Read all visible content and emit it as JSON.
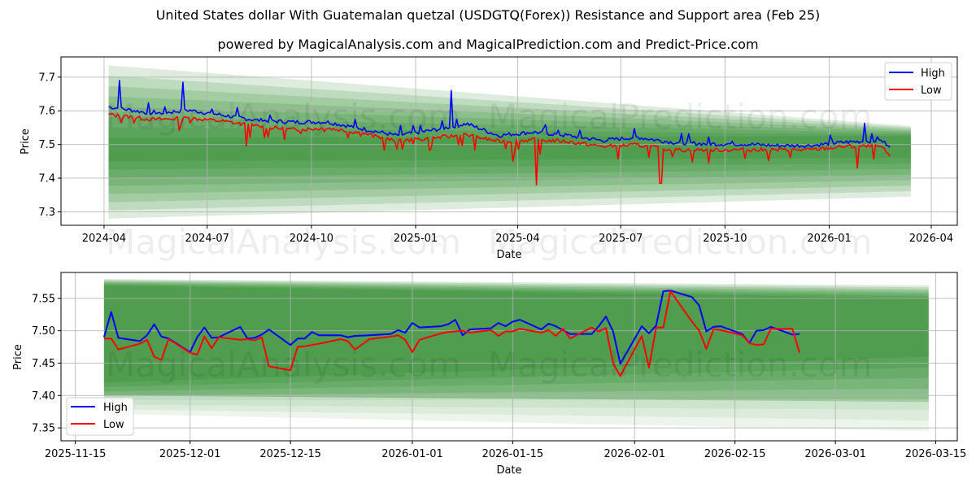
{
  "header": {
    "title": "United States dollar With Guatemalan quetzal (USDGTQ(Forex)) Resistance and Support area (Feb 25)",
    "subtitle": "powered by MagicalAnalysis.com and MagicalPrediction.com and Predict-Price.com"
  },
  "watermarks": [
    "MagicalAnalysis.com",
    "MagicalPrediction.com"
  ],
  "colors": {
    "high": "#0000ff",
    "low": "#ff0000",
    "band": "#2e8b2e",
    "grid": "#b0b0b0"
  },
  "chart_data": [
    {
      "type": "line",
      "title": "",
      "xlabel": "Date",
      "ylabel": "Price",
      "ylim": [
        7.26,
        7.76
      ],
      "xlim": [
        "2024-02-23",
        "2026-04-24"
      ],
      "grid": true,
      "legend_position": "upper right",
      "x_ticks": [
        "2024-04",
        "2024-07",
        "2024-10",
        "2025-01",
        "2025-04",
        "2025-07",
        "2025-10",
        "2026-01",
        "2026-04"
      ],
      "y_ticks": [
        "7.3",
        "7.4",
        "7.5",
        "7.6",
        "7.7"
      ],
      "legend": [
        "High",
        "Low"
      ],
      "band": {
        "x_start": "2024-04-05",
        "x_end": "2026-03-14",
        "outer_upper": [
          7.735,
          7.555
        ],
        "outer_lower": [
          7.28,
          7.345
        ],
        "core_upper": [
          7.52,
          7.525
        ],
        "core_lower": [
          7.45,
          7.46
        ]
      },
      "series": [
        {
          "name": "High",
          "approx_monthly": [
            {
              "x": "2024-04",
              "y": 7.61
            },
            {
              "x": "2024-05",
              "y": 7.59
            },
            {
              "x": "2024-06",
              "y": 7.6
            },
            {
              "x": "2024-07",
              "y": 7.585
            },
            {
              "x": "2024-08",
              "y": 7.57
            },
            {
              "x": "2024-09",
              "y": 7.565
            },
            {
              "x": "2024-10",
              "y": 7.565
            },
            {
              "x": "2024-11",
              "y": 7.545
            },
            {
              "x": "2024-12",
              "y": 7.525
            },
            {
              "x": "2025-01",
              "y": 7.54
            },
            {
              "x": "2025-02",
              "y": 7.56
            },
            {
              "x": "2025-03",
              "y": 7.525
            },
            {
              "x": "2025-04",
              "y": 7.535
            },
            {
              "x": "2025-05",
              "y": 7.525
            },
            {
              "x": "2025-06",
              "y": 7.51
            },
            {
              "x": "2025-07",
              "y": 7.52
            },
            {
              "x": "2025-08",
              "y": 7.505
            },
            {
              "x": "2025-09",
              "y": 7.5
            },
            {
              "x": "2025-10",
              "y": 7.5
            },
            {
              "x": "2025-11",
              "y": 7.495
            },
            {
              "x": "2025-12",
              "y": 7.495
            },
            {
              "x": "2026-01",
              "y": 7.505
            },
            {
              "x": "2026-02",
              "y": 7.51
            },
            {
              "x": "2026-02-24",
              "y": 7.495
            }
          ],
          "notable_peaks": [
            {
              "x": "2024-04-15",
              "y": 7.69
            },
            {
              "x": "2024-06-10",
              "y": 7.685
            },
            {
              "x": "2025-02-01",
              "y": 7.66
            },
            {
              "x": "2026-02-01",
              "y": 7.563
            }
          ]
        },
        {
          "name": "Low",
          "approx_monthly": [
            {
              "x": "2024-04",
              "y": 7.59
            },
            {
              "x": "2024-05",
              "y": 7.575
            },
            {
              "x": "2024-06",
              "y": 7.58
            },
            {
              "x": "2024-07",
              "y": 7.57
            },
            {
              "x": "2024-08",
              "y": 7.555
            },
            {
              "x": "2024-09",
              "y": 7.545
            },
            {
              "x": "2024-10",
              "y": 7.55
            },
            {
              "x": "2024-11",
              "y": 7.535
            },
            {
              "x": "2024-12",
              "y": 7.51
            },
            {
              "x": "2025-01",
              "y": 7.52
            },
            {
              "x": "2025-02",
              "y": 7.53
            },
            {
              "x": "2025-03",
              "y": 7.51
            },
            {
              "x": "2025-04",
              "y": 7.515
            },
            {
              "x": "2025-05",
              "y": 7.51
            },
            {
              "x": "2025-06",
              "y": 7.495
            },
            {
              "x": "2025-07",
              "y": 7.5
            },
            {
              "x": "2025-08",
              "y": 7.485
            },
            {
              "x": "2025-09",
              "y": 7.485
            },
            {
              "x": "2025-10",
              "y": 7.485
            },
            {
              "x": "2025-11",
              "y": 7.485
            },
            {
              "x": "2025-12",
              "y": 7.485
            },
            {
              "x": "2026-01",
              "y": 7.495
            },
            {
              "x": "2026-02",
              "y": 7.495
            },
            {
              "x": "2026-02-24",
              "y": 7.466
            }
          ],
          "notable_troughs": [
            {
              "x": "2024-08-05",
              "y": 7.495
            },
            {
              "x": "2025-03-28",
              "y": 7.45
            },
            {
              "x": "2025-04-18",
              "y": 7.38
            },
            {
              "x": "2025-08-05",
              "y": 7.385
            },
            {
              "x": "2026-01-26",
              "y": 7.43
            }
          ]
        }
      ]
    },
    {
      "type": "line",
      "title": "",
      "xlabel": "Date",
      "ylabel": "Price",
      "ylim": [
        7.33,
        7.59
      ],
      "xlim": [
        "2025-11-13",
        "2026-03-18"
      ],
      "grid": true,
      "legend_position": "lower left",
      "x_ticks": [
        "2025-11-15",
        "2025-12-01",
        "2025-12-15",
        "2026-01-01",
        "2026-01-15",
        "2026-02-01",
        "2026-02-15",
        "2026-03-01",
        "2026-03-15"
      ],
      "y_ticks": [
        "7.35",
        "7.40",
        "7.45",
        "7.50",
        "7.55"
      ],
      "legend": [
        "High",
        "Low"
      ],
      "band": {
        "x_start": "2025-11-19",
        "x_end": "2026-03-14",
        "outer_upper": [
          7.58,
          7.57
        ],
        "outer_lower": [
          7.372,
          7.345
        ],
        "mid_lower": [
          7.4,
          7.39
        ],
        "core_upper": [
          7.57,
          7.55
        ],
        "core_lower": [
          7.42,
          7.46
        ]
      },
      "x": [
        "2025-11-19",
        "2025-11-20",
        "2025-11-21",
        "2025-11-24",
        "2025-11-25",
        "2025-11-26",
        "2025-11-27",
        "2025-11-28",
        "2025-12-01",
        "2025-12-02",
        "2025-12-03",
        "2025-12-04",
        "2025-12-05",
        "2025-12-08",
        "2025-12-09",
        "2025-12-10",
        "2025-12-11",
        "2025-12-12",
        "2025-12-15",
        "2025-12-16",
        "2025-12-17",
        "2025-12-18",
        "2025-12-19",
        "2025-12-22",
        "2025-12-23",
        "2025-12-24",
        "2025-12-26",
        "2025-12-29",
        "2025-12-30",
        "2025-12-31",
        "2026-01-01",
        "2026-01-02",
        "2026-01-05",
        "2026-01-06",
        "2026-01-07",
        "2026-01-08",
        "2026-01-09",
        "2026-01-12",
        "2026-01-13",
        "2026-01-14",
        "2026-01-15",
        "2026-01-16",
        "2026-01-19",
        "2026-01-20",
        "2026-01-21",
        "2026-01-22",
        "2026-01-23",
        "2026-01-26",
        "2026-01-27",
        "2026-01-28",
        "2026-01-29",
        "2026-01-30",
        "2026-02-02",
        "2026-02-03",
        "2026-02-04",
        "2026-02-05",
        "2026-02-06",
        "2026-02-09",
        "2026-02-10",
        "2026-02-11",
        "2026-02-12",
        "2026-02-13",
        "2026-02-16",
        "2026-02-17",
        "2026-02-18",
        "2026-02-19",
        "2026-02-20",
        "2026-02-23",
        "2026-02-24"
      ],
      "series": [
        {
          "name": "High",
          "values": [
            7.49,
            7.529,
            7.489,
            7.484,
            7.493,
            7.51,
            7.491,
            7.488,
            7.467,
            7.49,
            7.505,
            7.489,
            7.49,
            7.506,
            7.488,
            7.489,
            7.494,
            7.502,
            7.478,
            7.488,
            7.488,
            7.498,
            7.493,
            7.493,
            7.49,
            7.492,
            7.493,
            7.495,
            7.501,
            7.497,
            7.512,
            7.505,
            7.507,
            7.51,
            7.517,
            7.493,
            7.502,
            7.504,
            7.512,
            7.507,
            7.514,
            7.517,
            7.502,
            7.511,
            7.507,
            7.501,
            7.495,
            7.495,
            7.507,
            7.522,
            7.499,
            7.449,
            7.507,
            7.496,
            7.508,
            7.561,
            7.562,
            7.552,
            7.539,
            7.499,
            7.506,
            7.507,
            7.495,
            7.481,
            7.5,
            7.501,
            7.506,
            7.494,
            7.495
          ]
        },
        {
          "name": "Low",
          "values": [
            7.488,
            7.488,
            7.471,
            7.48,
            7.486,
            7.46,
            7.455,
            7.487,
            7.466,
            7.463,
            7.491,
            7.473,
            7.49,
            7.486,
            7.487,
            7.485,
            7.49,
            7.445,
            7.439,
            7.475,
            7.476,
            7.478,
            7.48,
            7.487,
            7.484,
            7.471,
            7.487,
            7.491,
            7.493,
            7.486,
            7.467,
            7.486,
            7.496,
            7.498,
            7.499,
            7.5,
            7.497,
            7.501,
            7.492,
            7.499,
            7.499,
            7.503,
            7.497,
            7.501,
            7.492,
            7.503,
            7.488,
            7.505,
            7.499,
            7.504,
            7.45,
            7.43,
            7.492,
            7.443,
            7.505,
            7.505,
            7.561,
            7.514,
            7.5,
            7.472,
            7.502,
            7.501,
            7.493,
            7.481,
            7.478,
            7.479,
            7.503,
            7.503,
            7.466
          ]
        }
      ]
    }
  ]
}
